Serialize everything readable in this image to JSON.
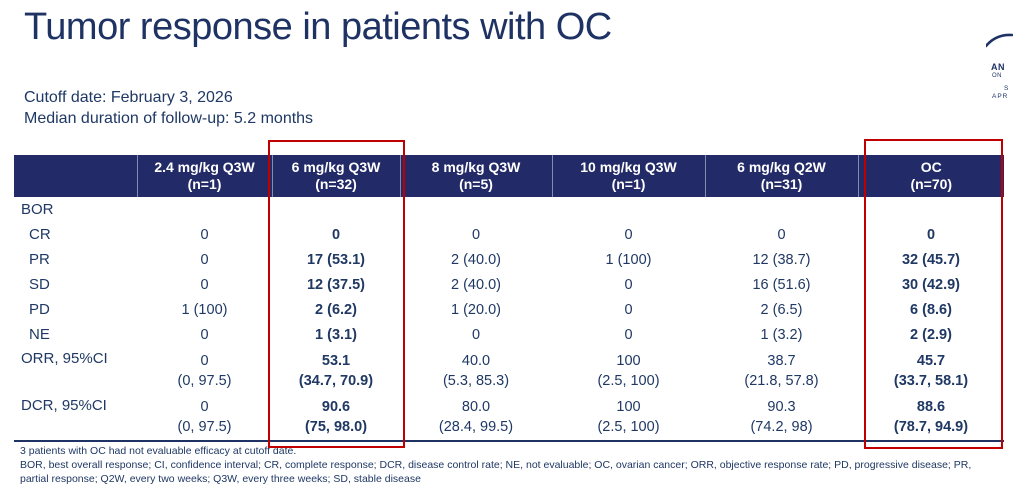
{
  "slide": {
    "title": "Tumor response in patients with OC",
    "cutoff_line": "Cutoff date: February 3, 2026",
    "followup_line": "Median duration of follow-up: 5.2 months",
    "footnote1": "3 patients with OC had not evaluable efficacy at cutoff date.",
    "footnote2": "BOR, best overall response; CI, confidence interval; CR, complete response; DCR, disease control rate; NE, not evaluable; OC, ovarian cancer; ORR, objective response rate; PD, progressive disease; PR, partial response; Q2W, every two weeks; Q3W, every three weeks; SD, stable disease"
  },
  "logo": {
    "description": "conference-logo-clipped-at-right-edge",
    "fragments": {
      "f1": "AN",
      "f2": "ON",
      "f3": "S",
      "f4": "APR"
    }
  },
  "colors": {
    "header_bg": "#232a68",
    "text_navy": "#1f3864",
    "title_navy": "#1e3263",
    "highlight_red": "#c00000"
  },
  "table": {
    "header": [
      {
        "line1": "",
        "line2": ""
      },
      {
        "line1": "2.4 mg/kg Q3W",
        "line2": "(n=1)"
      },
      {
        "line1": "6 mg/kg Q3W",
        "line2": "(n=32)"
      },
      {
        "line1": "8 mg/kg Q3W",
        "line2": "(n=5)"
      },
      {
        "line1": "10 mg/kg Q3W",
        "line2": "(n=1)"
      },
      {
        "line1": "6 mg/kg Q2W",
        "line2": "(n=31)"
      },
      {
        "line1": "OC",
        "line2": "(n=70)"
      }
    ],
    "bold_columns": [
      2,
      6
    ],
    "rows": [
      {
        "label": "BOR",
        "indent": false,
        "multiline": false,
        "values": [
          "",
          "",
          "",
          "",
          "",
          ""
        ]
      },
      {
        "label": "CR",
        "indent": true,
        "multiline": false,
        "values": [
          "0",
          "0",
          "0",
          "0",
          "0",
          "0"
        ]
      },
      {
        "label": "PR",
        "indent": true,
        "multiline": false,
        "values": [
          "0",
          "17 (53.1)",
          "2 (40.0)",
          "1 (100)",
          "12 (38.7)",
          "32 (45.7)"
        ]
      },
      {
        "label": "SD",
        "indent": true,
        "multiline": false,
        "values": [
          "0",
          "12 (37.5)",
          "2 (40.0)",
          "0",
          "16 (51.6)",
          "30 (42.9)"
        ]
      },
      {
        "label": "PD",
        "indent": true,
        "multiline": false,
        "values": [
          "1 (100)",
          "2 (6.2)",
          "1 (20.0)",
          "0",
          "2 (6.5)",
          "6 (8.6)"
        ]
      },
      {
        "label": "NE",
        "indent": true,
        "multiline": false,
        "values": [
          "0",
          "1 (3.1)",
          "0",
          "0",
          "1 (3.2)",
          "2 (2.9)"
        ]
      },
      {
        "label": "ORR, 95%CI",
        "indent": false,
        "multiline": true,
        "values": [
          "0\n(0, 97.5)",
          "53.1\n(34.7, 70.9)",
          "40.0\n(5.3, 85.3)",
          "100\n(2.5, 100)",
          "38.7\n(21.8, 57.8)",
          "45.7\n(33.7, 58.1)"
        ]
      },
      {
        "label": "DCR, 95%CI",
        "indent": false,
        "multiline": true,
        "values": [
          "0\n(0, 97.5)",
          "90.6\n(75, 98.0)",
          "80.0\n(28.4, 99.5)",
          "100\n(2.5, 100)",
          "90.3\n(74.2, 98)",
          "88.6\n(78.7, 94.9)"
        ]
      }
    ]
  }
}
